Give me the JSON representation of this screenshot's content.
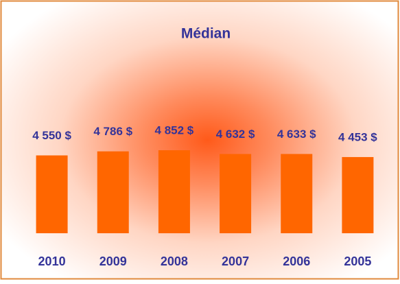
{
  "chart_data": {
    "type": "bar",
    "title": "Médian",
    "categories": [
      "2010",
      "2009",
      "2008",
      "2007",
      "2006",
      "2005"
    ],
    "values": [
      4550,
      4786,
      4852,
      4632,
      4633,
      4453
    ],
    "value_labels": [
      "4 550 $",
      "4 786 $",
      "4 852 $",
      "4 632 $",
      "4 633 $",
      "4 453 $"
    ],
    "color": "#ff6600"
  }
}
